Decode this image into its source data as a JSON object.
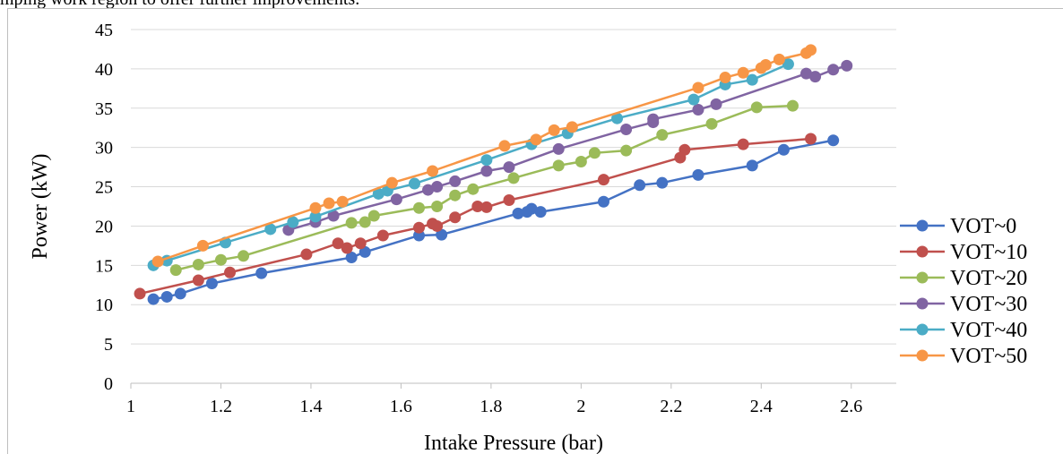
{
  "caption_fragment": "mping work region to offer further improvements.",
  "chart_data": {
    "type": "scatter",
    "xlabel": "Intake Pressure (bar)",
    "ylabel": "Power (kW)",
    "xlim": [
      1,
      2.7
    ],
    "ylim": [
      0,
      45
    ],
    "xticks": [
      "1",
      "1.2",
      "1.4",
      "1.6",
      "1.8",
      "2",
      "2.2",
      "2.4",
      "2.6"
    ],
    "yticks": [
      "0",
      "5",
      "10",
      "15",
      "20",
      "25",
      "30",
      "35",
      "40",
      "45"
    ],
    "grid": "horizontal",
    "legend_position": "right",
    "series": [
      {
        "name": "VOT~0",
        "color": "#4472C4",
        "points": [
          [
            1.05,
            10.7
          ],
          [
            1.08,
            11.0
          ],
          [
            1.11,
            11.4
          ],
          [
            1.18,
            12.7
          ],
          [
            1.29,
            14.0
          ],
          [
            1.49,
            16.0
          ],
          [
            1.52,
            16.7
          ],
          [
            1.64,
            18.8
          ],
          [
            1.69,
            18.9
          ],
          [
            1.86,
            21.6
          ],
          [
            1.88,
            21.8
          ],
          [
            1.89,
            22.2
          ],
          [
            1.91,
            21.8
          ],
          [
            2.05,
            23.1
          ],
          [
            2.13,
            25.2
          ],
          [
            2.18,
            25.5
          ],
          [
            2.26,
            26.5
          ],
          [
            2.38,
            27.7
          ],
          [
            2.45,
            29.7
          ],
          [
            2.56,
            30.9
          ]
        ]
      },
      {
        "name": "VOT~10",
        "color": "#C0504D",
        "points": [
          [
            1.02,
            11.4
          ],
          [
            1.15,
            13.1
          ],
          [
            1.22,
            14.1
          ],
          [
            1.39,
            16.4
          ],
          [
            1.46,
            17.8
          ],
          [
            1.48,
            17.2
          ],
          [
            1.51,
            17.8
          ],
          [
            1.56,
            18.8
          ],
          [
            1.64,
            19.8
          ],
          [
            1.67,
            20.3
          ],
          [
            1.68,
            20.0
          ],
          [
            1.72,
            21.1
          ],
          [
            1.77,
            22.5
          ],
          [
            1.79,
            22.4
          ],
          [
            1.84,
            23.3
          ],
          [
            2.05,
            25.9
          ],
          [
            2.22,
            28.7
          ],
          [
            2.23,
            29.7
          ],
          [
            2.36,
            30.4
          ],
          [
            2.51,
            31.1
          ]
        ]
      },
      {
        "name": "VOT~20",
        "color": "#9BBB59",
        "points": [
          [
            1.1,
            14.4
          ],
          [
            1.15,
            15.1
          ],
          [
            1.2,
            15.7
          ],
          [
            1.25,
            16.2
          ],
          [
            1.49,
            20.4
          ],
          [
            1.52,
            20.5
          ],
          [
            1.54,
            21.3
          ],
          [
            1.64,
            22.3
          ],
          [
            1.68,
            22.5
          ],
          [
            1.72,
            23.9
          ],
          [
            1.76,
            24.7
          ],
          [
            1.85,
            26.1
          ],
          [
            1.95,
            27.7
          ],
          [
            2.0,
            28.2
          ],
          [
            2.03,
            29.3
          ],
          [
            2.1,
            29.6
          ],
          [
            2.18,
            31.6
          ],
          [
            2.29,
            33.0
          ],
          [
            2.39,
            35.1
          ],
          [
            2.47,
            35.3
          ]
        ]
      },
      {
        "name": "VOT~30",
        "color": "#8064A2",
        "points": [
          [
            1.35,
            19.5
          ],
          [
            1.41,
            20.5
          ],
          [
            1.45,
            21.3
          ],
          [
            1.59,
            23.4
          ],
          [
            1.66,
            24.6
          ],
          [
            1.68,
            25.0
          ],
          [
            1.72,
            25.7
          ],
          [
            1.79,
            27.0
          ],
          [
            1.84,
            27.5
          ],
          [
            1.95,
            29.8
          ],
          [
            2.1,
            32.3
          ],
          [
            2.16,
            33.2
          ],
          [
            2.16,
            33.6
          ],
          [
            2.26,
            34.8
          ],
          [
            2.3,
            35.5
          ],
          [
            2.5,
            39.4
          ],
          [
            2.52,
            39.0
          ],
          [
            2.56,
            39.9
          ],
          [
            2.59,
            40.4
          ]
        ]
      },
      {
        "name": "VOT~40",
        "color": "#4BACC6",
        "points": [
          [
            1.05,
            15.0
          ],
          [
            1.08,
            15.6
          ],
          [
            1.21,
            17.9
          ],
          [
            1.31,
            19.6
          ],
          [
            1.36,
            20.5
          ],
          [
            1.41,
            21.2
          ],
          [
            1.55,
            24.1
          ],
          [
            1.57,
            24.5
          ],
          [
            1.63,
            25.4
          ],
          [
            1.79,
            28.4
          ],
          [
            1.89,
            30.4
          ],
          [
            1.97,
            31.8
          ],
          [
            2.08,
            33.7
          ],
          [
            2.25,
            36.1
          ],
          [
            2.32,
            38.0
          ],
          [
            2.38,
            38.6
          ],
          [
            2.46,
            40.6
          ]
        ]
      },
      {
        "name": "VOT~50",
        "color": "#F79646",
        "points": [
          [
            1.06,
            15.5
          ],
          [
            1.16,
            17.5
          ],
          [
            1.41,
            22.3
          ],
          [
            1.44,
            22.9
          ],
          [
            1.47,
            23.1
          ],
          [
            1.58,
            25.5
          ],
          [
            1.67,
            27.0
          ],
          [
            1.83,
            30.2
          ],
          [
            1.9,
            31.0
          ],
          [
            1.94,
            32.2
          ],
          [
            1.98,
            32.6
          ],
          [
            2.26,
            37.6
          ],
          [
            2.32,
            38.9
          ],
          [
            2.36,
            39.5
          ],
          [
            2.4,
            40.1
          ],
          [
            2.41,
            40.5
          ],
          [
            2.44,
            41.2
          ],
          [
            2.5,
            42.0
          ],
          [
            2.51,
            42.4
          ]
        ]
      }
    ]
  }
}
